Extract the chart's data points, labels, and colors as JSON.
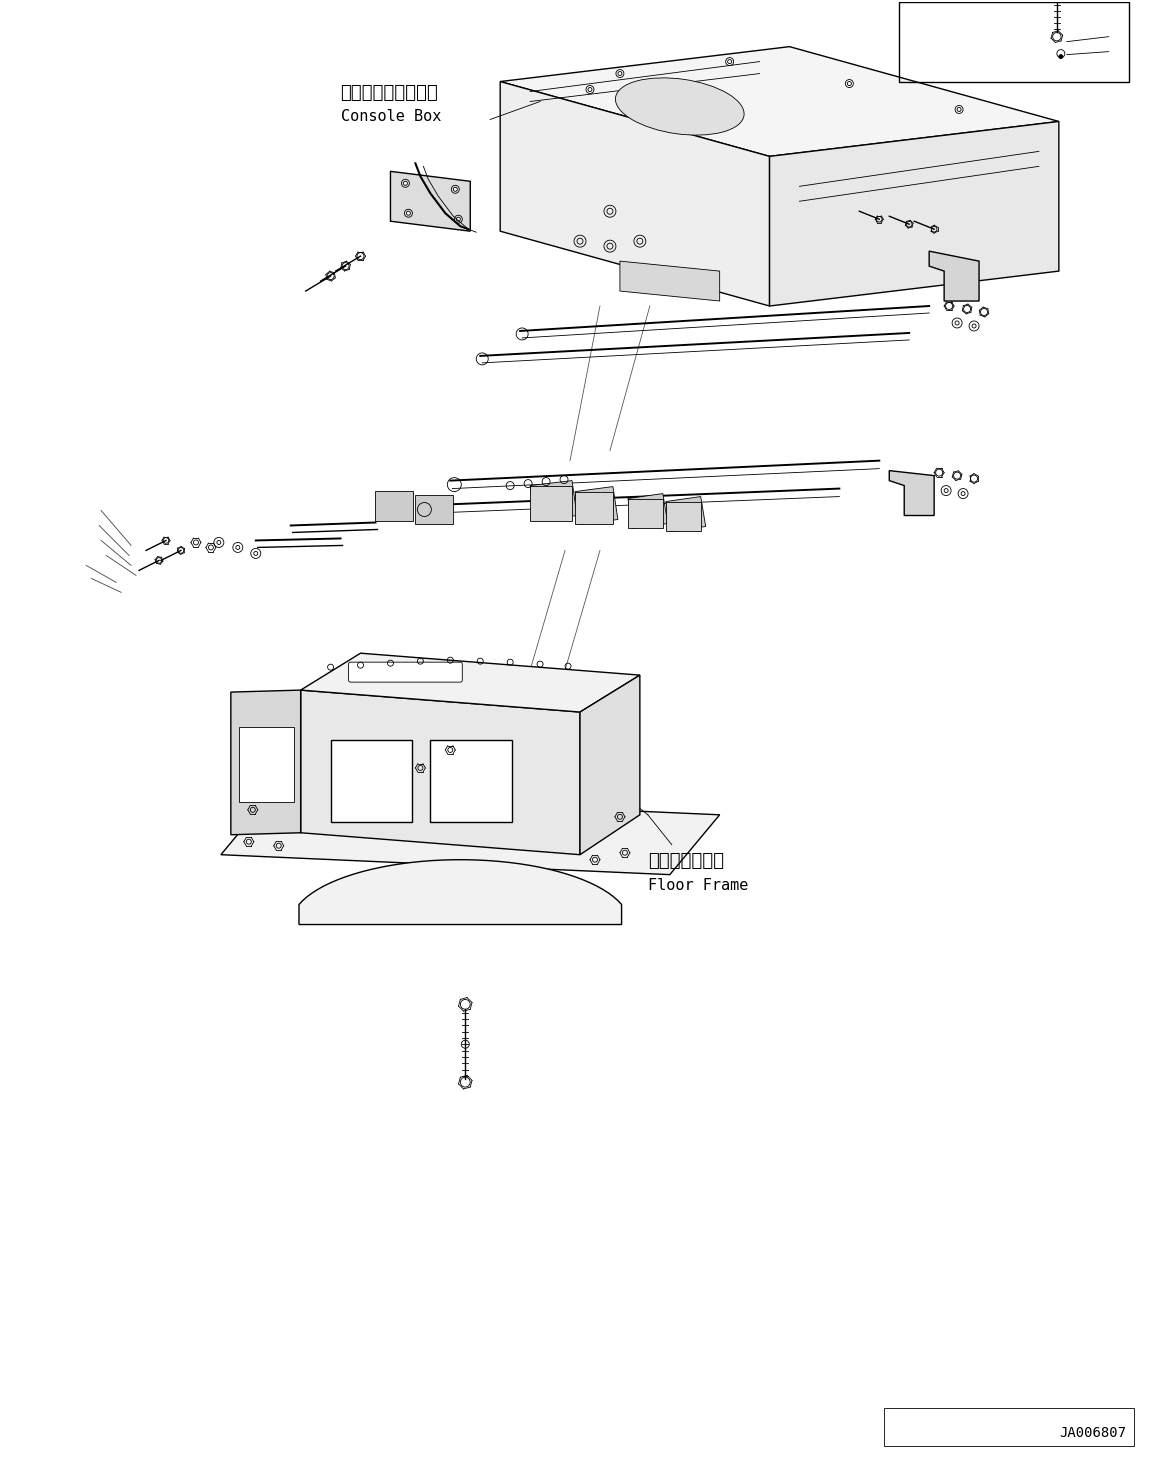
{
  "bg_color": "#ffffff",
  "line_color": "#000000",
  "fig_width": 11.63,
  "fig_height": 14.6,
  "dpi": 100,
  "label_console_jp": "コンソールボックス",
  "label_console_en": "Console Box",
  "label_floor_jp": "フロアフレーム",
  "label_floor_en": "Floor Frame",
  "doc_id": "JA006807",
  "font_size_label": 10,
  "font_size_doc": 9
}
